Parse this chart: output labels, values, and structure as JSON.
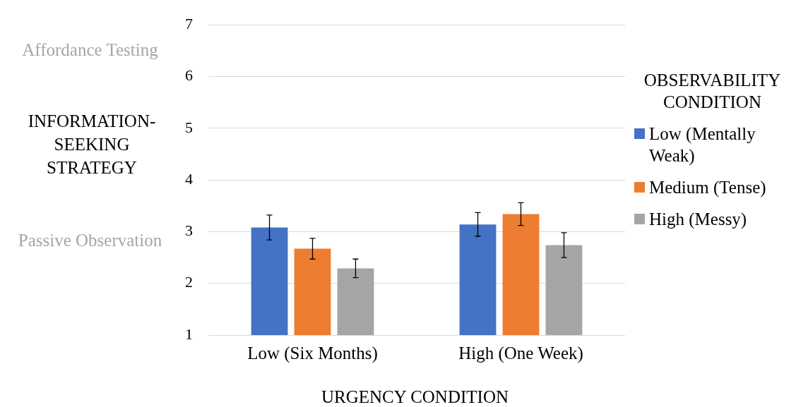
{
  "chart_data": {
    "type": "bar",
    "xlabel": "URGENCY CONDITION",
    "ylabel": "INFORMATION-SEEKING STRATEGY",
    "legend_title": "OBSERVABILITY CONDITION",
    "legend": "right",
    "grid": "y",
    "categories": [
      "Low (Six Months)",
      "High (One Week)"
    ],
    "ylim": [
      1,
      7
    ],
    "yticks": [
      1,
      2,
      3,
      4,
      5,
      6,
      7
    ],
    "series": [
      {
        "name": "Low (Mentally Weak)",
        "color": "#4472c4",
        "values": [
          3.08,
          3.14
        ],
        "errors": [
          0.24,
          0.23
        ]
      },
      {
        "name": "Medium (Tense)",
        "color": "#ed7d31",
        "values": [
          2.67,
          3.34
        ],
        "errors": [
          0.2,
          0.22
        ]
      },
      {
        "name": "High (Messy)",
        "color": "#a5a5a5",
        "values": [
          2.29,
          2.74
        ],
        "errors": [
          0.18,
          0.24
        ]
      }
    ],
    "annotations": [
      "Affordance Testing",
      "Passive Observation"
    ]
  }
}
